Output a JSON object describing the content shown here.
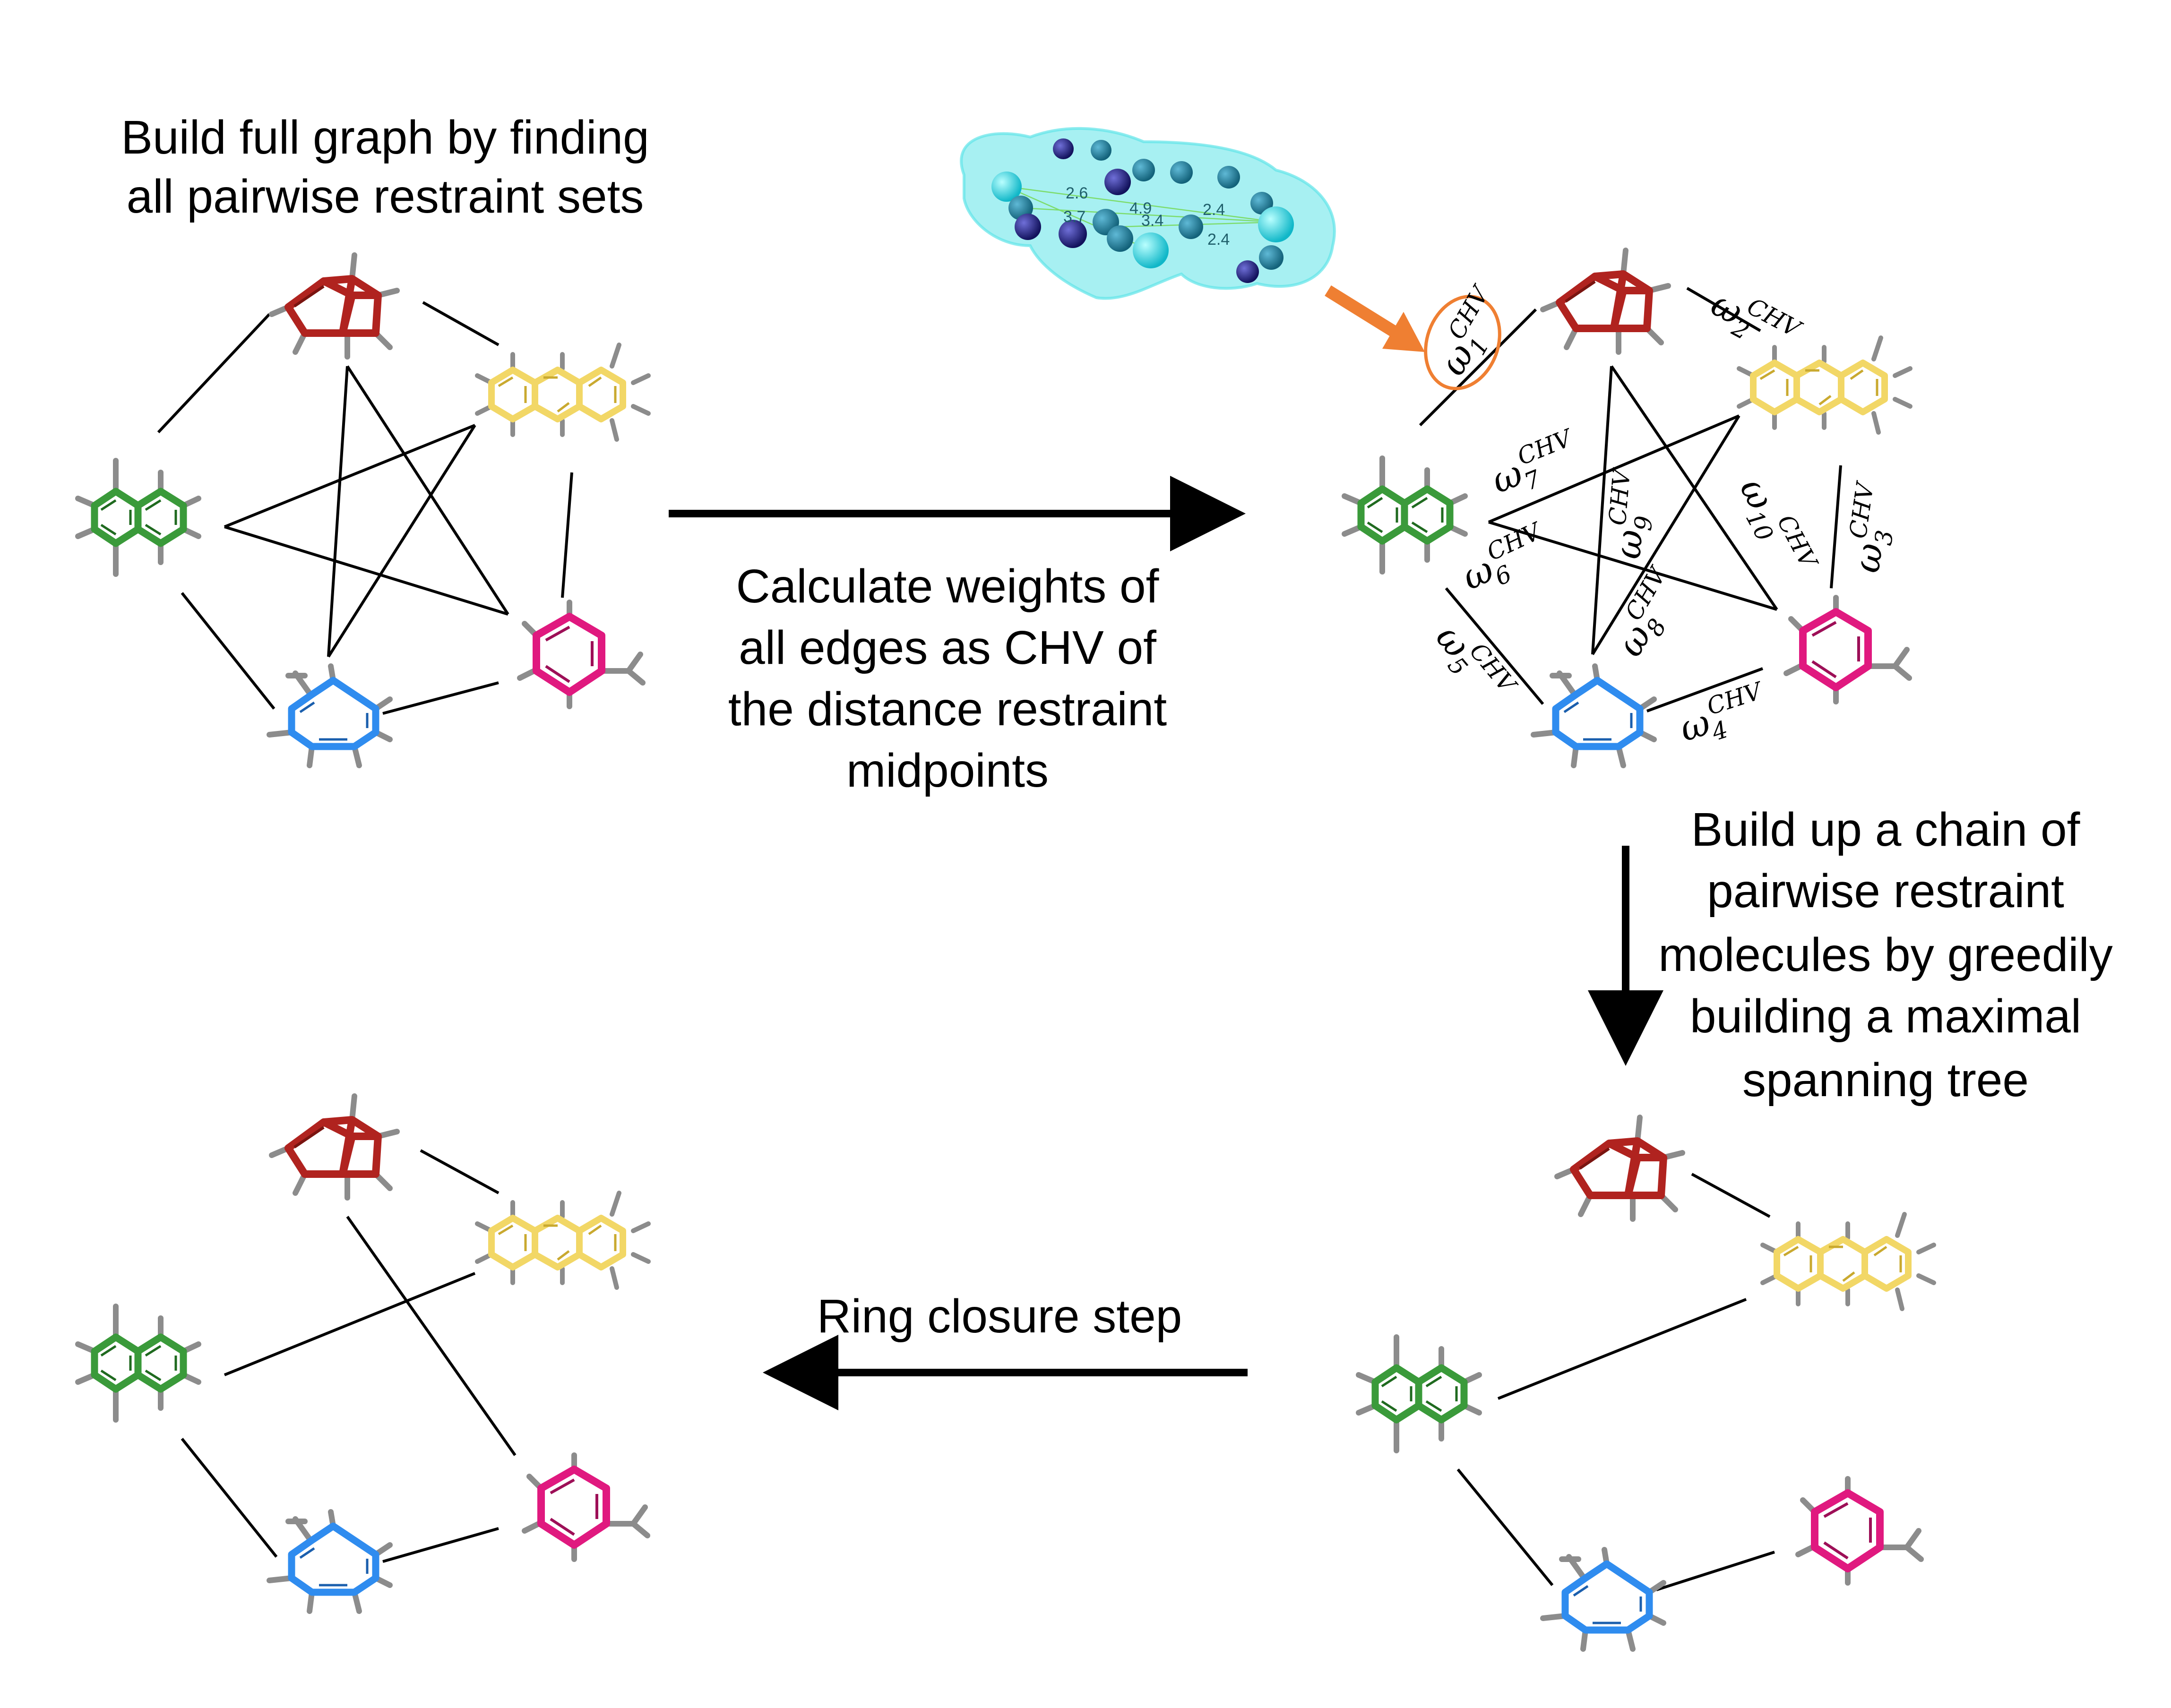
{
  "captions": {
    "full_graph": [
      "Build full graph by finding",
      "all pairwise restraint sets"
    ],
    "weights": [
      "Calculate weights of",
      "all edges as CHV of",
      "the distance restraint",
      "midpoints"
    ],
    "spanning_tree": [
      "Build up a chain of",
      "pairwise restraint",
      "molecules by greedily",
      "building a maximal",
      "spanning tree"
    ],
    "ring_closure": [
      "Ring closure step"
    ]
  },
  "weight_symbol": "ω",
  "weight_superscript": "CHV",
  "weight_indices": [
    "1",
    "2",
    "3",
    "4",
    "5",
    "6",
    "7",
    "8",
    "9",
    "10"
  ],
  "distance_labels": [
    "2.6",
    "4.9",
    "2.4",
    "3.7",
    "3.4",
    "2.4"
  ],
  "molecules": [
    {
      "name": "red-bicyclic",
      "color": "#b0231f"
    },
    {
      "name": "yellow-anthracene",
      "color": "#f2d766"
    },
    {
      "name": "green-naphthalene",
      "color": "#3a9a3a"
    },
    {
      "name": "blue-toluene",
      "color": "#2f8cef"
    },
    {
      "name": "magenta-styrene",
      "color": "#e0197f"
    }
  ],
  "colors": {
    "hydrogen": "#8c8c8c",
    "arrow": "#000000",
    "highlight": "#ef7f32",
    "surface": "#5fe4e8",
    "sphere_dark": "#1d1d7a",
    "sphere_light": "#1fc6d6"
  }
}
